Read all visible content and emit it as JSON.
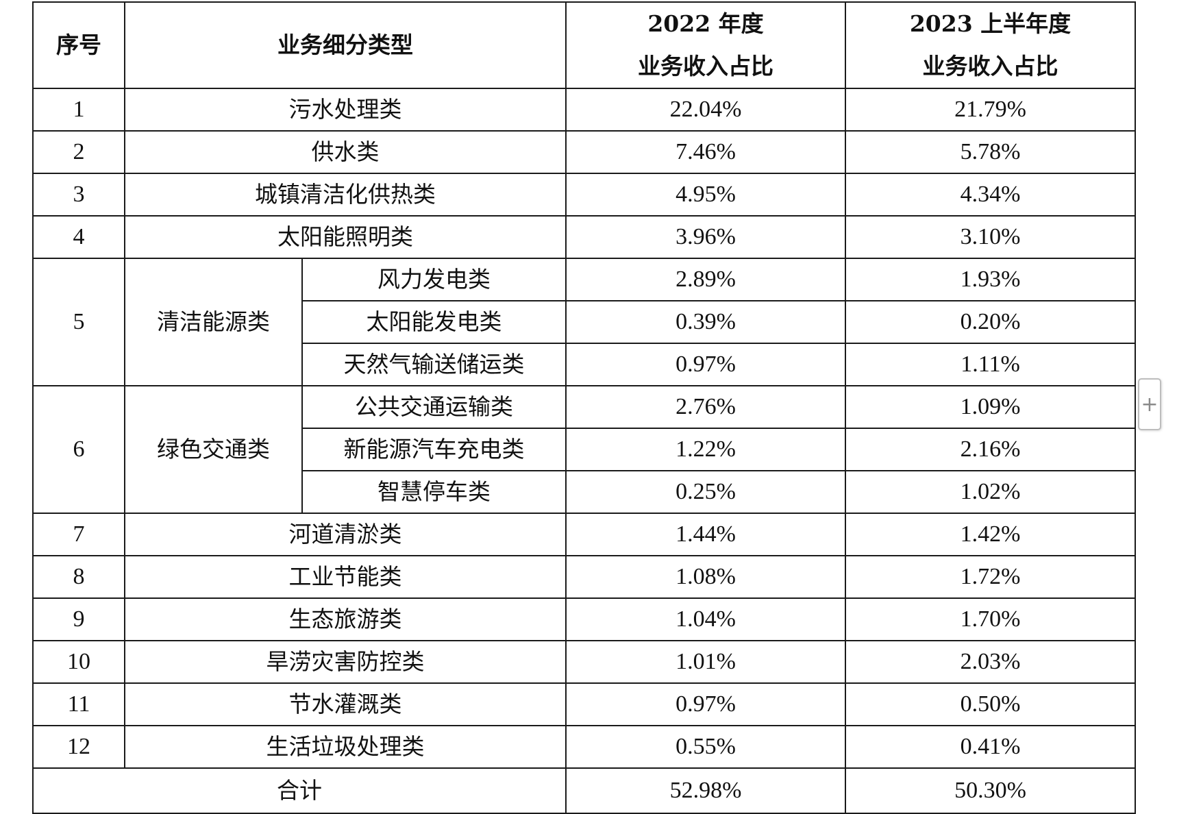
{
  "header": {
    "col_index": "序号",
    "col_category": "业务细分类型",
    "col_2022_line1": "2022 年度",
    "col_2022_line2": "业务收入占比",
    "col_2023_line1": "2023 上半年度",
    "col_2023_line2": "业务收入占比"
  },
  "rows": [
    {
      "no": "1",
      "category": "污水处理类",
      "v2022": "22.04%",
      "v2023h1": "21.79%"
    },
    {
      "no": "2",
      "category": "供水类",
      "v2022": "7.46%",
      "v2023h1": "5.78%"
    },
    {
      "no": "3",
      "category": "城镇清洁化供热类",
      "v2022": "4.95%",
      "v2023h1": "4.34%"
    },
    {
      "no": "4",
      "category": "太阳能照明类",
      "v2022": "3.96%",
      "v2023h1": "3.10%"
    },
    {
      "no": "5",
      "group": "清洁能源类",
      "sub": [
        {
          "category": "风力发电类",
          "v2022": "2.89%",
          "v2023h1": "1.93%"
        },
        {
          "category": "太阳能发电类",
          "v2022": "0.39%",
          "v2023h1": "0.20%"
        },
        {
          "category": "天然气输送储运类",
          "v2022": "0.97%",
          "v2023h1": "1.11%"
        }
      ]
    },
    {
      "no": "6",
      "group": "绿色交通类",
      "sub": [
        {
          "category": "公共交通运输类",
          "v2022": "2.76%",
          "v2023h1": "1.09%"
        },
        {
          "category": "新能源汽车充电类",
          "v2022": "1.22%",
          "v2023h1": "2.16%"
        },
        {
          "category": "智慧停车类",
          "v2022": "0.25%",
          "v2023h1": "1.02%"
        }
      ]
    },
    {
      "no": "7",
      "category": "河道清淤类",
      "v2022": "1.44%",
      "v2023h1": "1.42%"
    },
    {
      "no": "8",
      "category": "工业节能类",
      "v2022": "1.08%",
      "v2023h1": "1.72%"
    },
    {
      "no": "9",
      "category": "生态旅游类",
      "v2022": "1.04%",
      "v2023h1": "1.70%"
    },
    {
      "no": "10",
      "category": "旱涝灾害防控类",
      "v2022": "1.01%",
      "v2023h1": "2.03%"
    },
    {
      "no": "11",
      "category": "节水灌溉类",
      "v2022": "0.97%",
      "v2023h1": "0.50%"
    },
    {
      "no": "12",
      "category": "生活垃圾处理类",
      "v2022": "0.55%",
      "v2023h1": "0.41%"
    }
  ],
  "total": {
    "label": "合计",
    "v2022": "52.98%",
    "v2023h1": "50.30%"
  },
  "add_button": {
    "icon": "plus-icon",
    "glyph": "+"
  }
}
